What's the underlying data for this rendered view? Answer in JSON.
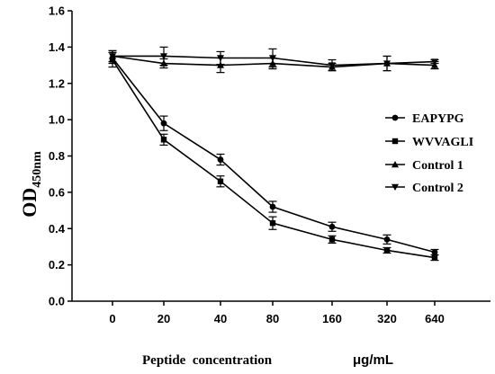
{
  "chart_data": {
    "type": "line",
    "title": "",
    "xlabel": "Peptide  concentration",
    "xunit": "μg/mL",
    "ylabel_main": "OD",
    "ylabel_sub": "450nm",
    "categories": [
      "0",
      "20",
      "40",
      "80",
      "160",
      "320",
      "640"
    ],
    "ylim": [
      0.0,
      1.6
    ],
    "yticks": [
      "0.0",
      "0.2",
      "0.4",
      "0.6",
      "0.8",
      "1.0",
      "1.2",
      "1.4",
      "1.6"
    ],
    "grid": false,
    "legend_position": "right",
    "series": [
      {
        "name": "EAPYPG",
        "marker": "circle",
        "values": [
          1.34,
          0.98,
          0.78,
          0.52,
          0.41,
          0.34,
          0.27
        ],
        "errors": [
          0.03,
          0.04,
          0.03,
          0.03,
          0.025,
          0.025,
          0.015
        ]
      },
      {
        "name": "WVVAGLI",
        "marker": "square",
        "values": [
          1.33,
          0.89,
          0.66,
          0.43,
          0.34,
          0.28,
          0.24
        ],
        "errors": [
          0.04,
          0.03,
          0.03,
          0.035,
          0.02,
          0.015,
          0.015
        ]
      },
      {
        "name": "Control 1",
        "marker": "triangle-up",
        "values": [
          1.35,
          1.31,
          1.3,
          1.31,
          1.29,
          1.31,
          1.3
        ],
        "errors": [
          0.03,
          0.025,
          0.04,
          0.03,
          0.02,
          0.04,
          0.02
        ]
      },
      {
        "name": "Control 2",
        "marker": "triangle-down",
        "values": [
          1.35,
          1.35,
          1.34,
          1.34,
          1.3,
          1.31,
          1.32
        ],
        "errors": [
          0.03,
          0.05,
          0.035,
          0.05,
          0.03,
          0.04,
          0.01
        ]
      }
    ]
  }
}
